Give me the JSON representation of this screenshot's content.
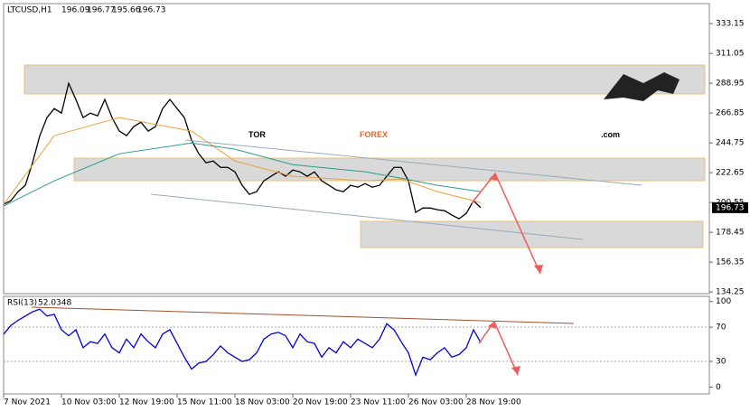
{
  "chart_data": [
    {
      "type": "line",
      "title": "LTCUSD,H1",
      "ohlc": [
        196.09,
        196.77,
        195.66,
        196.73
      ],
      "last_price": 196.73,
      "xlim": [
        0,
        781
      ],
      "xticks": [
        {
          "value": 0,
          "label": "7 Nov 2021"
        },
        {
          "value": 64,
          "label": "10 Nov 03:00"
        },
        {
          "value": 128,
          "label": "12 Nov 19:00"
        },
        {
          "value": 192,
          "label": "15 Nov 11:00"
        },
        {
          "value": 256,
          "label": "18 Nov 03:00"
        },
        {
          "value": 320,
          "label": "20 Nov 19:00"
        },
        {
          "value": 384,
          "label": "23 Nov 11:00"
        },
        {
          "value": 448,
          "label": "26 Nov 03:00"
        },
        {
          "value": 512,
          "label": "28 Nov 19:00"
        }
      ],
      "ylim": [
        133,
        348
      ],
      "yticks": [
        333.15,
        311.05,
        288.95,
        266.85,
        244.75,
        222.65,
        200.55,
        178.45,
        156.35,
        134.25
      ],
      "series": [
        {
          "color": "#000000",
          "x": [
            0,
            8,
            16,
            24,
            32,
            40,
            48,
            56,
            64,
            72,
            80,
            88,
            96,
            104,
            112,
            120,
            128,
            136,
            144,
            152,
            160,
            168,
            176,
            184,
            192,
            200,
            208,
            216,
            224,
            232,
            240,
            248,
            256,
            264,
            272,
            280,
            288,
            296,
            304,
            312,
            320,
            328,
            336,
            344,
            352,
            360,
            368,
            376,
            384,
            392,
            400,
            408,
            416,
            424,
            432,
            440,
            448,
            456,
            464,
            472,
            480,
            488,
            496,
            504,
            512,
            520,
            528
          ],
          "values": [
            199.2,
            201.9,
            208.6,
            213.3,
            230,
            250,
            263.5,
            270.2,
            266.8,
            288.9,
            276.9,
            263.5,
            266.8,
            264.8,
            276.9,
            263.5,
            253.5,
            250.1,
            256.8,
            260.1,
            253.5,
            256.8,
            270.2,
            276.9,
            270.2,
            263.5,
            246.8,
            236.7,
            230,
            231.3,
            226.6,
            226.6,
            223.3,
            213.3,
            206.6,
            208.6,
            216.6,
            220,
            223.3,
            220,
            224.6,
            223.3,
            220,
            223.3,
            216.6,
            213.3,
            209.9,
            208.6,
            213.3,
            211.9,
            214.6,
            211.9,
            213.3,
            220,
            226.6,
            226.6,
            216.6,
            193.2,
            196.5,
            196.5,
            195.2,
            194.5,
            191.2,
            188.5,
            192.5,
            201.9,
            196.73
          ]
        },
        {
          "color": "#e8a33c",
          "x": [
            0,
            56,
            128,
            208,
            256,
            320,
            400,
            440,
            480,
            528
          ],
          "values": [
            199.2,
            250.1,
            263.5,
            253.5,
            231.3,
            220,
            216.6,
            218,
            208.6,
            200.5
          ]
        },
        {
          "color": "#2a9d8f",
          "x": [
            0,
            56,
            128,
            208,
            256,
            320,
            400,
            440,
            480,
            528
          ],
          "values": [
            197.9,
            216.6,
            236.7,
            244.7,
            240.1,
            228.6,
            223.3,
            218.6,
            213.3,
            208.6
          ]
        }
      ]
    },
    {
      "type": "line",
      "title": "RSI(13)",
      "current": 52.0348,
      "xlim": [
        0,
        781
      ],
      "ylim": [
        -8,
        106
      ],
      "yticks": [
        100,
        70,
        30,
        0
      ],
      "series": [
        {
          "color": "#0000e0",
          "x": [
            0,
            8,
            16,
            24,
            32,
            40,
            48,
            56,
            64,
            72,
            80,
            88,
            96,
            104,
            112,
            120,
            128,
            136,
            144,
            152,
            160,
            168,
            176,
            184,
            192,
            200,
            208,
            216,
            224,
            232,
            240,
            248,
            256,
            264,
            272,
            280,
            288,
            296,
            304,
            312,
            320,
            328,
            336,
            344,
            352,
            360,
            368,
            376,
            384,
            392,
            400,
            408,
            416,
            424,
            432,
            440,
            448,
            456,
            464,
            472,
            480,
            488,
            496,
            504,
            512,
            520,
            528
          ],
          "values": [
            61.7,
            72,
            78,
            83,
            88,
            91,
            83,
            85,
            67,
            60,
            67,
            46,
            53,
            51,
            62,
            46,
            40,
            56,
            46,
            62,
            53,
            46,
            62,
            67,
            51,
            35,
            21,
            28,
            30,
            38,
            48,
            40,
            35,
            30,
            32,
            40,
            56,
            62,
            64,
            60,
            46,
            62,
            53,
            51,
            35,
            46,
            40,
            53,
            46,
            56,
            51,
            46,
            56,
            74,
            67,
            53,
            40,
            14,
            35,
            32,
            40,
            46,
            35,
            38,
            46,
            67,
            52.0348
          ]
        }
      ]
    }
  ],
  "watermark": {
    "part1": "TOR",
    "part2": "FOREX",
    "part3": ".com"
  }
}
